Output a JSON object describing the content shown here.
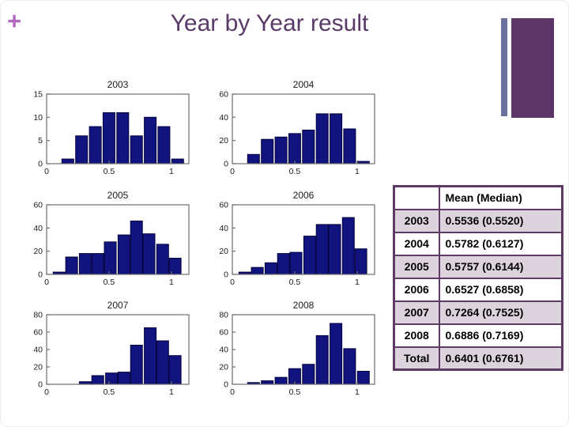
{
  "slide": {
    "plus_glyph": "+",
    "title": "Year by Year result"
  },
  "colors": {
    "bar_fill": "#11137e",
    "accent_bar_wide": "#5d3566",
    "accent_bar_thin": "#6b6f9d",
    "title_text": "#5a3a68",
    "plus_glyph": "#b169bf",
    "table_border": "#5d3b64",
    "table_shade": "#ddd3dd"
  },
  "chart_data": [
    {
      "type": "bar",
      "title": "2003",
      "xlabel": "",
      "ylabel": "",
      "xlim": [
        0,
        1.14
      ],
      "ylim": [
        0,
        15
      ],
      "xticks": [
        0,
        0.5,
        1
      ],
      "yticks": [
        0,
        5,
        10,
        15
      ],
      "bin_centers": [
        0.17,
        0.28,
        0.39,
        0.5,
        0.61,
        0.72,
        0.83,
        0.94,
        1.05
      ],
      "values": [
        1,
        6,
        8,
        11,
        11,
        6,
        10,
        8,
        1
      ]
    },
    {
      "type": "bar",
      "title": "2004",
      "xlabel": "",
      "ylabel": "",
      "xlim": [
        0,
        1.14
      ],
      "ylim": [
        0,
        60
      ],
      "xticks": [
        0,
        0.5,
        1
      ],
      "yticks": [
        0,
        20,
        40,
        60
      ],
      "bin_centers": [
        0.17,
        0.28,
        0.39,
        0.5,
        0.61,
        0.72,
        0.83,
        0.94,
        1.05
      ],
      "values": [
        8,
        21,
        23,
        26,
        29,
        43,
        43,
        30,
        2
      ]
    },
    {
      "type": "bar",
      "title": "2005",
      "xlabel": "",
      "ylabel": "",
      "xlim": [
        0,
        1.14
      ],
      "ylim": [
        0,
        60
      ],
      "xticks": [
        0,
        0.5,
        1
      ],
      "yticks": [
        0,
        20,
        40,
        60
      ],
      "bin_centers": [
        0.1,
        0.2,
        0.31,
        0.41,
        0.51,
        0.62,
        0.72,
        0.82,
        0.93,
        1.03
      ],
      "values": [
        2,
        15,
        18,
        18,
        28,
        34,
        46,
        35,
        26,
        14
      ]
    },
    {
      "type": "bar",
      "title": "2006",
      "xlabel": "",
      "ylabel": "",
      "xlim": [
        0,
        1.14
      ],
      "ylim": [
        0,
        60
      ],
      "xticks": [
        0,
        0.5,
        1
      ],
      "yticks": [
        0,
        20,
        40,
        60
      ],
      "bin_centers": [
        0.1,
        0.2,
        0.31,
        0.41,
        0.51,
        0.62,
        0.72,
        0.82,
        0.93,
        1.03
      ],
      "values": [
        2,
        6,
        10,
        18,
        19,
        33,
        43,
        43,
        49,
        22
      ]
    },
    {
      "type": "bar",
      "title": "2007",
      "xlabel": "",
      "ylabel": "",
      "xlim": [
        0,
        1.14
      ],
      "ylim": [
        0,
        80
      ],
      "xticks": [
        0,
        0.5,
        1
      ],
      "yticks": [
        0,
        20,
        40,
        60,
        80
      ],
      "bin_centers": [
        0.31,
        0.41,
        0.52,
        0.62,
        0.72,
        0.83,
        0.93,
        1.03
      ],
      "values": [
        3,
        10,
        13,
        14,
        45,
        65,
        50,
        33
      ]
    },
    {
      "type": "bar",
      "title": "2008",
      "xlabel": "",
      "ylabel": "",
      "xlim": [
        0,
        1.14
      ],
      "ylim": [
        0,
        80
      ],
      "xticks": [
        0,
        0.5,
        1
      ],
      "yticks": [
        0,
        20,
        40,
        60,
        80
      ],
      "bin_centers": [
        0.17,
        0.28,
        0.39,
        0.5,
        0.61,
        0.72,
        0.83,
        0.94,
        1.05
      ],
      "values": [
        2,
        4,
        8,
        18,
        23,
        56,
        70,
        41,
        15
      ]
    }
  ],
  "stats_table": {
    "header": [
      "",
      "Mean (Median)"
    ],
    "rows": [
      [
        "2003",
        "0.5536 (0.5520)"
      ],
      [
        "2004",
        "0.5782 (0.6127)"
      ],
      [
        "2005",
        "0.5757 (0.6144)"
      ],
      [
        "2006",
        "0.6527 (0.6858)"
      ],
      [
        "2007",
        "0.7264 (0.7525)"
      ],
      [
        "2008",
        "0.6886 (0.7169)"
      ],
      [
        "Total",
        "0.6401 (0.6761)"
      ]
    ]
  }
}
